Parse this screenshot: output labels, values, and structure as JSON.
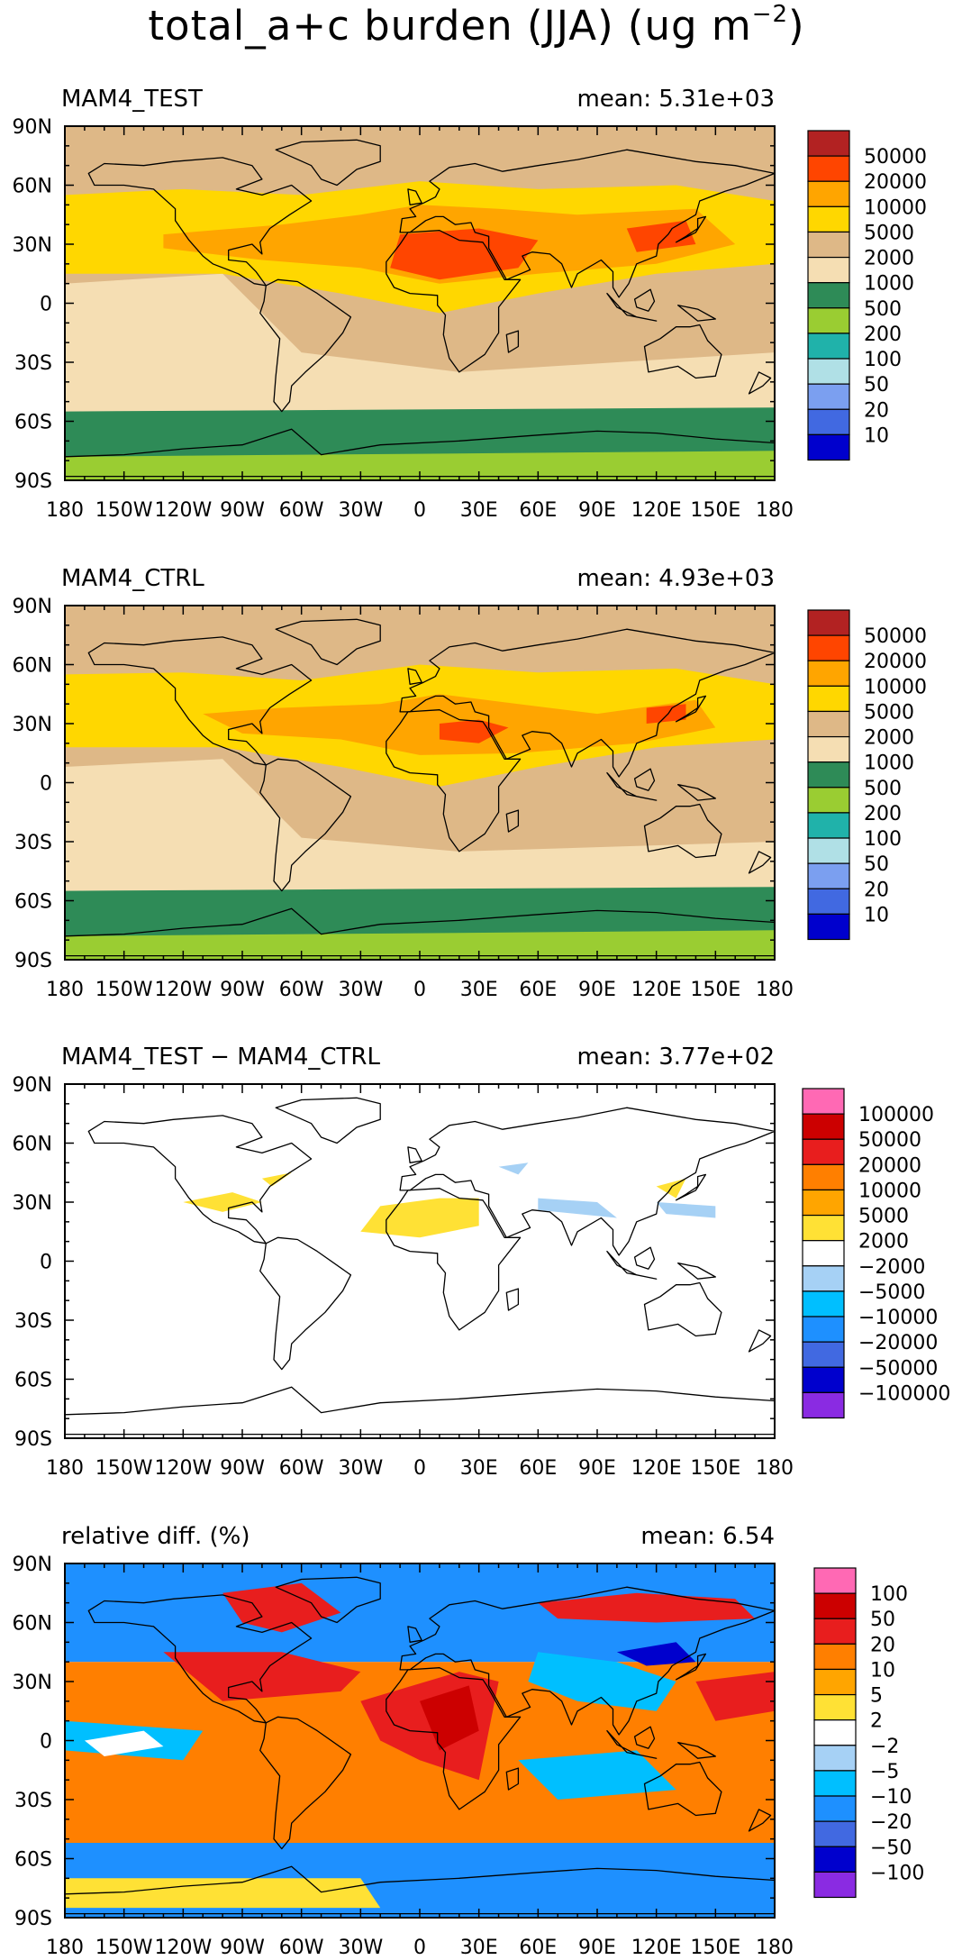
{
  "title": {
    "text": "total_a+c burden (JJA) (ug m",
    "superscript": "−2",
    "close": ")"
  },
  "axes": {
    "lat_labels": [
      "90N",
      "60N",
      "30N",
      "0",
      "30S",
      "60S",
      "90S"
    ],
    "lon_labels": [
      "180",
      "150W",
      "120W",
      "90W",
      "60W",
      "30W",
      "0",
      "30E",
      "60E",
      "90E",
      "120E",
      "150E",
      "180"
    ]
  },
  "panels": [
    {
      "id": "test",
      "label": "MAM4_TEST",
      "mean": "mean: 5.31e+03",
      "colorbar": {
        "labels": [
          "50000",
          "20000",
          "10000",
          "5000",
          "2000",
          "1000",
          "500",
          "200",
          "100",
          "50",
          "20",
          "10"
        ],
        "colors": [
          "#b22222",
          "#ff4500",
          "#ffa500",
          "#ffd700",
          "#deb887",
          "#f5deb3",
          "#2e8b57",
          "#9acd32",
          "#20b2aa",
          "#b0e0e6",
          "#7b9ff0",
          "#4169e1",
          "#0000cd"
        ]
      }
    },
    {
      "id": "ctrl",
      "label": "MAM4_CTRL",
      "mean": "mean: 4.93e+03",
      "colorbar": {
        "labels": [
          "50000",
          "20000",
          "10000",
          "5000",
          "2000",
          "1000",
          "500",
          "200",
          "100",
          "50",
          "20",
          "10"
        ],
        "colors": [
          "#b22222",
          "#ff4500",
          "#ffa500",
          "#ffd700",
          "#deb887",
          "#f5deb3",
          "#2e8b57",
          "#9acd32",
          "#20b2aa",
          "#b0e0e6",
          "#7b9ff0",
          "#4169e1",
          "#0000cd"
        ]
      }
    },
    {
      "id": "diff",
      "label": "MAM4_TEST − MAM4_CTRL",
      "mean": "mean: 3.77e+02",
      "colorbar": {
        "labels": [
          "100000",
          "50000",
          "20000",
          "10000",
          "5000",
          "2000",
          "−2000",
          "−5000",
          "−10000",
          "−20000",
          "−50000",
          "−100000"
        ],
        "colors": [
          "#ff69b4",
          "#cc0000",
          "#e81e1e",
          "#ff7f00",
          "#ffa500",
          "#ffe135",
          "#ffffff",
          "#a6d1f5",
          "#00bfff",
          "#1e90ff",
          "#4169e1",
          "#0000cd",
          "#8a2be2"
        ]
      }
    },
    {
      "id": "rel",
      "label": "relative diff. (%)",
      "mean": "mean:   6.54",
      "colorbar": {
        "labels": [
          "100",
          "50",
          "20",
          "10",
          "5",
          "2",
          "−2",
          "−5",
          "−10",
          "−20",
          "−50",
          "−100"
        ],
        "colors": [
          "#ff69b4",
          "#cc0000",
          "#e81e1e",
          "#ff7f00",
          "#ffa500",
          "#ffe135",
          "#ffffff",
          "#a6d1f5",
          "#00bfff",
          "#1e90ff",
          "#4169e1",
          "#0000cd",
          "#8a2be2"
        ]
      }
    }
  ]
}
